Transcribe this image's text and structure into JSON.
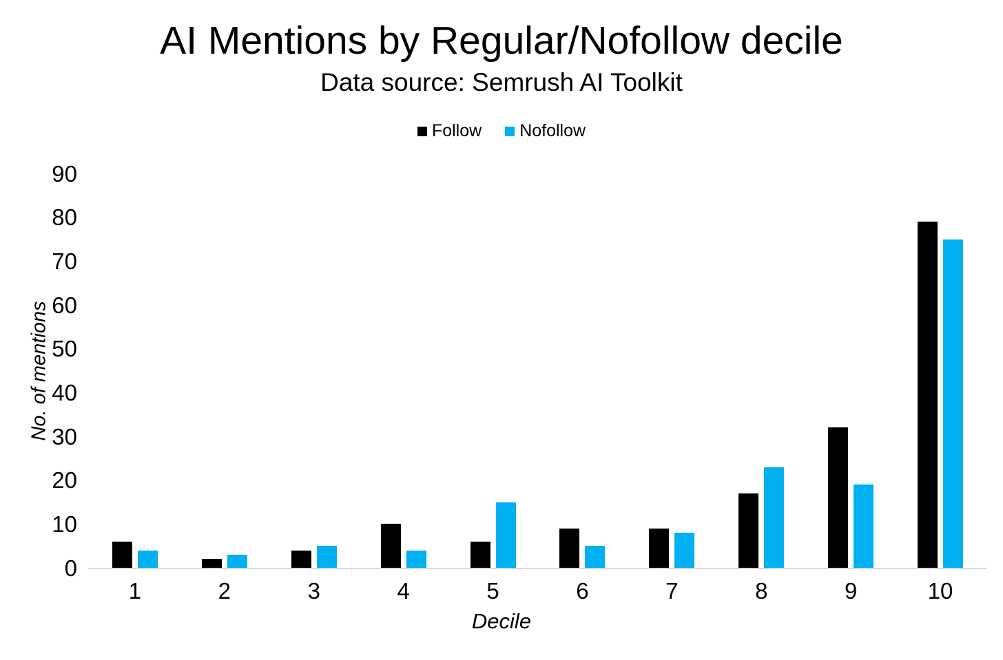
{
  "title": "AI Mentions by Regular/Nofollow decile",
  "subtitle": "Data source: Semrush AI Toolkit",
  "legend": {
    "items": [
      {
        "label": "Follow",
        "color": "#000000"
      },
      {
        "label": "Nofollow",
        "color": "#00B0F0"
      }
    ]
  },
  "colors": {
    "follow": "#000000",
    "nofollow": "#00B0F0",
    "axis_line": "#d9d9d9",
    "text": "#000000",
    "background": "#ffffff"
  },
  "chart_data": {
    "type": "bar",
    "title": "AI Mentions by Regular/Nofollow decile",
    "subtitle": "Data source: Semrush AI Toolkit",
    "categories": [
      "1",
      "2",
      "3",
      "4",
      "5",
      "6",
      "7",
      "8",
      "9",
      "10"
    ],
    "series": [
      {
        "name": "Follow",
        "color": "#000000",
        "values": [
          6,
          2,
          4,
          10,
          6,
          9,
          9,
          17,
          32,
          79
        ]
      },
      {
        "name": "Nofollow",
        "color": "#00B0F0",
        "values": [
          4,
          3,
          5,
          4,
          15,
          5,
          8,
          23,
          19,
          75
        ]
      }
    ],
    "xlabel": "Decile",
    "ylabel": "No. of mentions",
    "ylim": [
      0,
      90
    ],
    "ytick_step": 10,
    "yticks": [
      0,
      10,
      20,
      30,
      40,
      50,
      60,
      70,
      80,
      90
    ],
    "grid": false,
    "legend_position": "top"
  }
}
